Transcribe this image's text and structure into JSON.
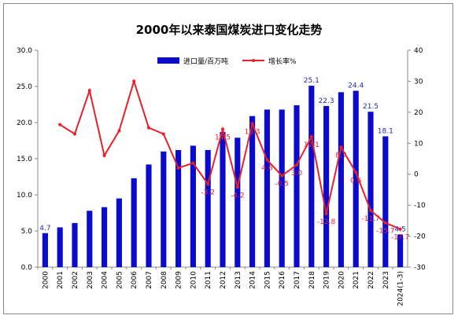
{
  "chart_data": {
    "type": "bar",
    "title": "2000年以来泰国煤炭进口变化走势",
    "categories": [
      "2000",
      "2001",
      "2002",
      "2003",
      "2004",
      "2005",
      "2006",
      "2007",
      "2008",
      "2009",
      "2010",
      "2011",
      "2012",
      "2013",
      "2014",
      "2015",
      "2016",
      "2017",
      "2018",
      "2019",
      "2020",
      "2021",
      "2022",
      "2023",
      "2024(1-3)"
    ],
    "series": [
      {
        "name": "进口量/百万吨",
        "type": "bar",
        "axis": "left",
        "color": "#0b0bd0",
        "values": [
          4.7,
          5.5,
          6.1,
          7.8,
          8.3,
          9.5,
          12.3,
          14.2,
          16.0,
          16.2,
          16.8,
          16.2,
          18.7,
          17.9,
          20.9,
          21.8,
          21.8,
          22.4,
          25.1,
          22.3,
          24.2,
          24.4,
          21.5,
          18.1,
          4.5
        ],
        "data_labels": {
          "0": "4.7",
          "18": "25.1",
          "19": "22.3",
          "21": "24.4",
          "22": "21.5",
          "23": "18.1",
          "24": "4.5"
        }
      },
      {
        "name": "增长率%",
        "type": "line",
        "axis": "right",
        "color": "#e8202a",
        "values": [
          null,
          16.0,
          13.0,
          27.0,
          6.0,
          14.0,
          30.0,
          15.0,
          13.0,
          2.0,
          3.6,
          -3.2,
          14.5,
          -4.2,
          16.3,
          4.6,
          -0.5,
          3.0,
          12.1,
          -12.8,
          8.7,
          0.6,
          -11.7,
          -15.7,
          -17.7
        ],
        "data_labels": {
          "11": "-3.2",
          "12": "14.5",
          "13": "-4.2",
          "14": "16.3",
          "15": "4.6",
          "16": "-0.5",
          "17": "3.0",
          "18": "12.1",
          "19": "-12.8",
          "20": "8.7",
          "21": "0.6",
          "22": "-11.7",
          "23": "-15.7",
          "24": "-17.7"
        }
      }
    ],
    "ylim": [
      0,
      30
    ],
    "yticks": [
      "0.0",
      "5.0",
      "10.0",
      "15.0",
      "20.0",
      "25.0",
      "30.0"
    ],
    "y2lim": [
      -30,
      40
    ],
    "y2ticks": [
      "-30",
      "-20",
      "-10",
      "0",
      "10",
      "20",
      "30",
      "40"
    ],
    "legend_position": "top-center",
    "grid": false
  }
}
